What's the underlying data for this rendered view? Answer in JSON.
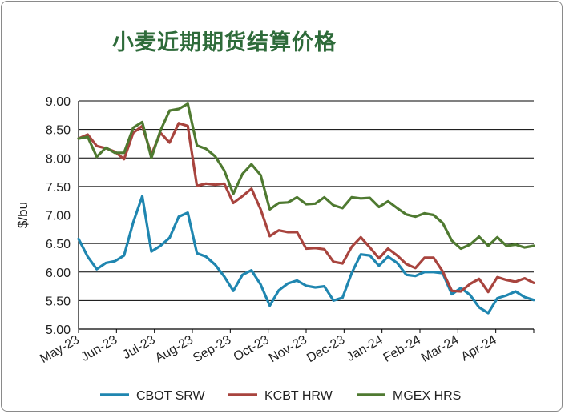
{
  "chart_data": {
    "type": "line",
    "title": "小麦近期期货结算价格",
    "ylabel": "$/bu",
    "xlabel": "",
    "ylim": [
      5.0,
      9.0
    ],
    "yticks": [
      "5.00",
      "5.50",
      "6.00",
      "6.50",
      "7.00",
      "7.50",
      "8.00",
      "8.50",
      "9.00"
    ],
    "grid": "horizontal",
    "legend": "bottom",
    "x_labels": [
      "May-23",
      "Jun-23",
      "Jul-23",
      "Aug-23",
      "Sep-23",
      "Oct-23",
      "Nov-23",
      "Dec-23",
      "Jan-24",
      "Feb-24",
      "Mar-24",
      "Apr-24"
    ],
    "series": [
      {
        "name": "CBOT SRW",
        "color": "#1f86b0",
        "values": [
          6.58,
          6.27,
          6.05,
          6.16,
          6.19,
          6.29,
          6.87,
          7.33,
          6.36,
          6.46,
          6.6,
          6.97,
          7.04,
          6.33,
          6.27,
          6.13,
          5.92,
          5.67,
          5.95,
          6.03,
          5.78,
          5.41,
          5.68,
          5.8,
          5.85,
          5.76,
          5.73,
          5.75,
          5.5,
          5.55,
          5.98,
          6.31,
          6.29,
          6.11,
          6.27,
          6.16,
          5.95,
          5.93,
          6.0,
          6.0,
          5.98,
          5.61,
          5.72,
          5.6,
          5.38,
          5.28,
          5.54,
          5.59,
          5.66,
          5.56,
          5.51
        ]
      },
      {
        "name": "KCBT HRW",
        "color": "#a8443e",
        "values": [
          8.34,
          8.41,
          8.21,
          8.17,
          8.11,
          7.98,
          8.44,
          8.56,
          8.06,
          8.44,
          8.27,
          8.61,
          8.56,
          7.51,
          7.55,
          7.53,
          7.55,
          7.21,
          7.33,
          7.46,
          7.1,
          6.63,
          6.73,
          6.7,
          6.7,
          6.41,
          6.42,
          6.4,
          6.18,
          6.15,
          6.44,
          6.61,
          6.43,
          6.24,
          6.41,
          6.29,
          6.14,
          6.07,
          6.25,
          6.25,
          6.01,
          5.67,
          5.66,
          5.79,
          5.88,
          5.65,
          5.91,
          5.86,
          5.83,
          5.89,
          5.81
        ]
      },
      {
        "name": "MGEX HRS",
        "color": "#4f7a31",
        "values": [
          8.34,
          8.37,
          8.02,
          8.18,
          8.09,
          8.09,
          8.53,
          8.63,
          8.0,
          8.48,
          8.83,
          8.86,
          8.95,
          8.22,
          8.16,
          8.03,
          7.78,
          7.37,
          7.72,
          7.89,
          7.7,
          7.1,
          7.21,
          7.22,
          7.31,
          7.19,
          7.2,
          7.31,
          7.17,
          7.12,
          7.31,
          7.29,
          7.3,
          7.14,
          7.24,
          7.12,
          7.01,
          6.97,
          7.03,
          7.0,
          6.86,
          6.55,
          6.41,
          6.48,
          6.62,
          6.46,
          6.61,
          6.46,
          6.48,
          6.43,
          6.46
        ]
      }
    ]
  }
}
